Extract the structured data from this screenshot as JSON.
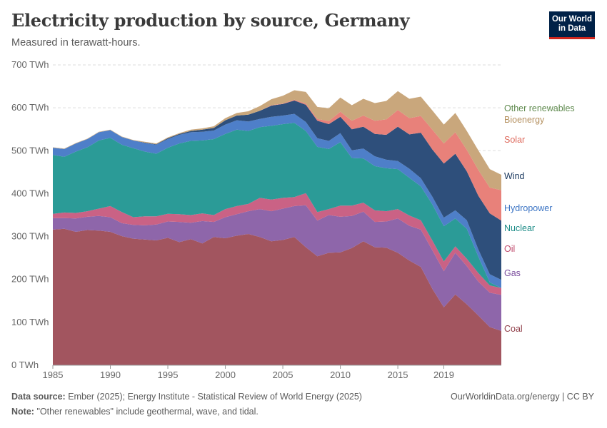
{
  "header": {
    "title": "Electricity production by source, Germany",
    "subtitle": "Measured in terawatt-hours."
  },
  "logo": {
    "line1": "Our World",
    "line2": "in Data",
    "bg": "#002147",
    "accent": "#ce261e"
  },
  "footer": {
    "source_label": "Data source:",
    "source_text": "Ember (2025); Energy Institute - Statistical Review of World Energy (2025)",
    "note_label": "Note:",
    "note_text": "\"Other renewables\" include geothermal, wave, and tidal.",
    "site": "OurWorldinData.org/energy | CC BY"
  },
  "chart_data": {
    "type": "area",
    "stacked": true,
    "x": [
      1985,
      1986,
      1987,
      1988,
      1989,
      1990,
      1991,
      1992,
      1993,
      1994,
      1995,
      1996,
      1997,
      1998,
      1999,
      2000,
      2001,
      2002,
      2003,
      2004,
      2005,
      2006,
      2007,
      2008,
      2009,
      2010,
      2011,
      2012,
      2013,
      2014,
      2015,
      2016,
      2017,
      2018,
      2019,
      2020,
      2021,
      2022,
      2023,
      2024
    ],
    "x_ticks": [
      1985,
      1990,
      1995,
      2000,
      2005,
      2010,
      2015,
      2019
    ],
    "y_ticks": [
      0,
      100,
      200,
      300,
      400,
      500,
      600,
      700
    ],
    "y_tick_labels": [
      "0 TWh",
      "100 TWh",
      "200 TWh",
      "300 TWh",
      "400 TWh",
      "500 TWh",
      "600 TWh",
      "700 TWh"
    ],
    "ylim": [
      0,
      700
    ],
    "grid": "horizontal-dashed",
    "legend": "right-inline",
    "series": [
      {
        "name": "Coal",
        "color": "#a2555f",
        "values": [
          316,
          318,
          311,
          315,
          314,
          311,
          301,
          295,
          293,
          291,
          297,
          287,
          294,
          284,
          299,
          296,
          302,
          306,
          299,
          289,
          292,
          299,
          275,
          254,
          262,
          263,
          273,
          289,
          275,
          274,
          262,
          244,
          229,
          178,
          135,
          165,
          142,
          116,
          89,
          80
        ]
      },
      {
        "name": "Gas",
        "color": "#8e66aa",
        "values": [
          27,
          25,
          31,
          31,
          34,
          34,
          30,
          32,
          33,
          37,
          38,
          47,
          38,
          52,
          35,
          49,
          50,
          53,
          65,
          70,
          73,
          72,
          98,
          83,
          88,
          83,
          75,
          69,
          59,
          61,
          80,
          81,
          87,
          90,
          84,
          97,
          89,
          79,
          80,
          84
        ]
      },
      {
        "name": "Oil",
        "color": "#ca6285",
        "values": [
          10,
          13,
          13,
          13,
          17,
          26,
          26,
          18,
          21,
          19,
          18,
          18,
          18,
          18,
          16,
          19,
          19,
          17,
          26,
          27,
          25,
          21,
          28,
          20,
          14,
          26,
          24,
          21,
          27,
          24,
          22,
          24,
          22,
          23,
          23,
          15,
          17,
          20,
          17,
          16
        ]
      },
      {
        "name": "Nuclear",
        "color": "#2b9b97",
        "values": [
          137,
          130,
          143,
          149,
          159,
          159,
          157,
          161,
          151,
          146,
          154,
          165,
          173,
          170,
          177,
          175,
          178,
          170,
          165,
          172,
          172,
          173,
          145,
          152,
          140,
          148,
          111,
          103,
          103,
          100,
          93,
          88,
          79,
          84,
          82,
          65,
          70,
          38,
          7,
          0
        ]
      },
      {
        "name": "Hydropower",
        "color": "#4e7fc9",
        "values": [
          17,
          18,
          19,
          19,
          19,
          18,
          18,
          18,
          20,
          21,
          20,
          20,
          20,
          20,
          20,
          22,
          22,
          22,
          19,
          21,
          20,
          21,
          21,
          20,
          19,
          21,
          18,
          23,
          23,
          20,
          19,
          21,
          19,
          18,
          20,
          19,
          20,
          17,
          19,
          19
        ]
      },
      {
        "name": "Wind",
        "color": "#2e4f7b",
        "values": [
          0,
          0,
          0,
          0,
          0,
          0,
          0,
          0,
          1,
          1,
          2,
          2,
          3,
          5,
          6,
          10,
          11,
          16,
          19,
          26,
          27,
          31,
          40,
          41,
          39,
          38,
          49,
          51,
          52,
          58,
          80,
          80,
          106,
          110,
          126,
          132,
          114,
          125,
          142,
          138
        ]
      },
      {
        "name": "Solar",
        "color": "#e8817a",
        "values": [
          0,
          0,
          0,
          0,
          0,
          0,
          0,
          0,
          0,
          0,
          0,
          0,
          0,
          0,
          0,
          0,
          0,
          0,
          0,
          1,
          1,
          2,
          3,
          4,
          7,
          12,
          20,
          26,
          31,
          36,
          39,
          38,
          39,
          46,
          47,
          50,
          50,
          60,
          60,
          71
        ]
      },
      {
        "name": "Bioenergy",
        "color": "#c9a77c",
        "values": [
          1,
          1,
          1,
          1,
          1,
          1,
          1,
          1,
          2,
          2,
          2,
          2,
          3,
          3,
          4,
          5,
          6,
          8,
          11,
          14,
          18,
          22,
          27,
          28,
          30,
          33,
          36,
          39,
          41,
          43,
          44,
          45,
          45,
          45,
          44,
          45,
          44,
          46,
          43,
          36
        ]
      },
      {
        "name": "Other renewables",
        "color": "#5f8a4e",
        "values": [
          0,
          0,
          0,
          0,
          0,
          0,
          0,
          0,
          0,
          0,
          0,
          0,
          0,
          0,
          0,
          0,
          0,
          0,
          0,
          0,
          0,
          0,
          0,
          0,
          0,
          0,
          0,
          0,
          0,
          0,
          0,
          0,
          0,
          0,
          0,
          0,
          0,
          0,
          0,
          0
        ]
      }
    ],
    "legend_labels": [
      {
        "name": "Other renewables",
        "color": "#5f8a4e"
      },
      {
        "name": "Bioenergy",
        "color": "#b59160"
      },
      {
        "name": "Solar",
        "color": "#de6a5d"
      },
      {
        "name": "Wind",
        "color": "#1c3a60"
      },
      {
        "name": "Hydropower",
        "color": "#3b74c4"
      },
      {
        "name": "Nuclear",
        "color": "#1d8c87"
      },
      {
        "name": "Oil",
        "color": "#c04c6e"
      },
      {
        "name": "Gas",
        "color": "#7c4f9e"
      },
      {
        "name": "Coal",
        "color": "#8f3d48"
      }
    ]
  }
}
